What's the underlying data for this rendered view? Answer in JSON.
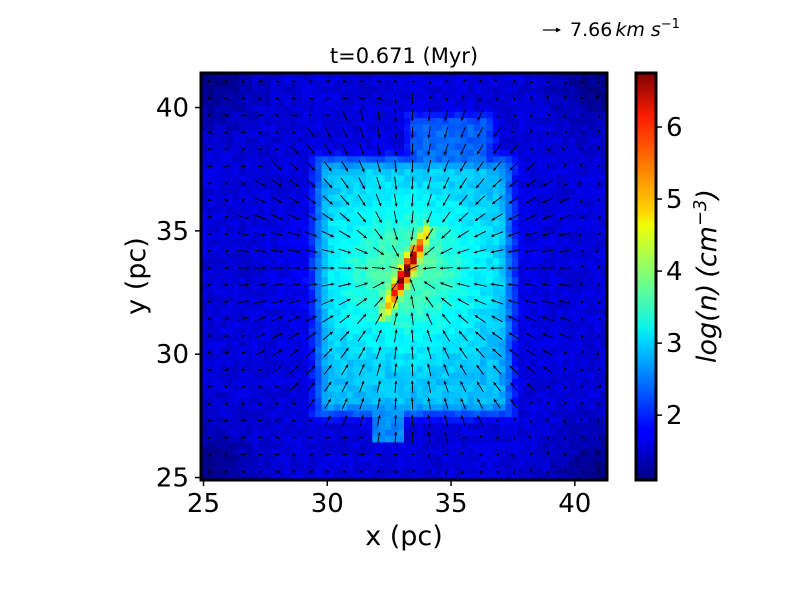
{
  "chart_data": {
    "type": "heatmap",
    "title": "t=0.671 (Myr)",
    "xlabel": "x (pc)",
    "ylabel": "y (pc)",
    "xlim": [
      24.9,
      41.3
    ],
    "ylim": [
      24.9,
      41.4
    ],
    "xticks": [
      25,
      30,
      35,
      40
    ],
    "yticks": [
      25,
      30,
      35,
      40
    ],
    "grid": false,
    "colormap": "jet",
    "colorbar": {
      "label": "log(n) (cm^-3)",
      "min": 1.1,
      "max": 6.75,
      "ticks": [
        2,
        3,
        4,
        5,
        6
      ]
    },
    "vector_reference": {
      "label": "7.66 km s^-1",
      "value_km_s": 7.66
    },
    "field_description": {
      "background_log_n": 1.6,
      "cloud_log_n": 2.8,
      "filament_peak_log_n": 6.7,
      "core_center_pc": [
        33.2,
        33.4
      ],
      "cloud_extent_x_pc": [
        29.0,
        38.0
      ],
      "cloud_extent_y_pc": [
        27.0,
        38.5
      ]
    }
  }
}
